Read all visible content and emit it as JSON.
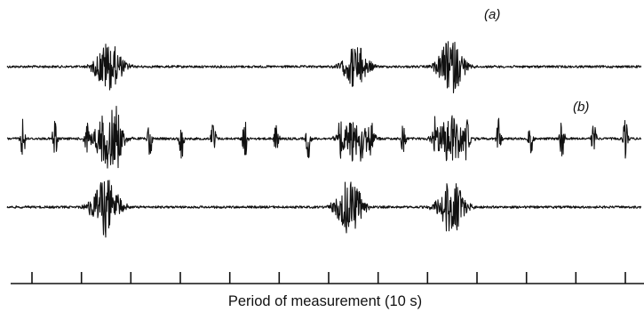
{
  "labels": {
    "panel_a": "(a)",
    "panel_b": "(b)"
  },
  "axis": {
    "caption": "Period of measurement (10 s)",
    "tick_count": 13
  },
  "traces": [
    {
      "name": "trace-a",
      "bursts": [
        {
          "center": 0.16,
          "width": 0.025,
          "amplitude": 1.0
        },
        {
          "center": 0.55,
          "width": 0.023,
          "amplitude": 0.9
        },
        {
          "center": 0.7,
          "width": 0.024,
          "amplitude": 1.1
        }
      ],
      "spikes": []
    },
    {
      "name": "trace-b",
      "bursts": [
        {
          "center": 0.16,
          "width": 0.025,
          "amplitude": 1.1
        },
        {
          "center": 0.55,
          "width": 0.025,
          "amplitude": 1.0
        },
        {
          "center": 0.7,
          "width": 0.025,
          "amplitude": 1.0
        }
      ],
      "spikes": [
        0.025,
        0.075,
        0.125,
        0.175,
        0.225,
        0.275,
        0.325,
        0.375,
        0.425,
        0.475,
        0.525,
        0.575,
        0.625,
        0.675,
        0.725,
        0.775,
        0.825,
        0.875,
        0.925,
        0.975
      ]
    },
    {
      "name": "trace-c",
      "bursts": [
        {
          "center": 0.155,
          "width": 0.025,
          "amplitude": 1.05
        },
        {
          "center": 0.54,
          "width": 0.024,
          "amplitude": 1.0
        },
        {
          "center": 0.7,
          "width": 0.024,
          "amplitude": 1.0
        }
      ],
      "spikes": []
    }
  ]
}
